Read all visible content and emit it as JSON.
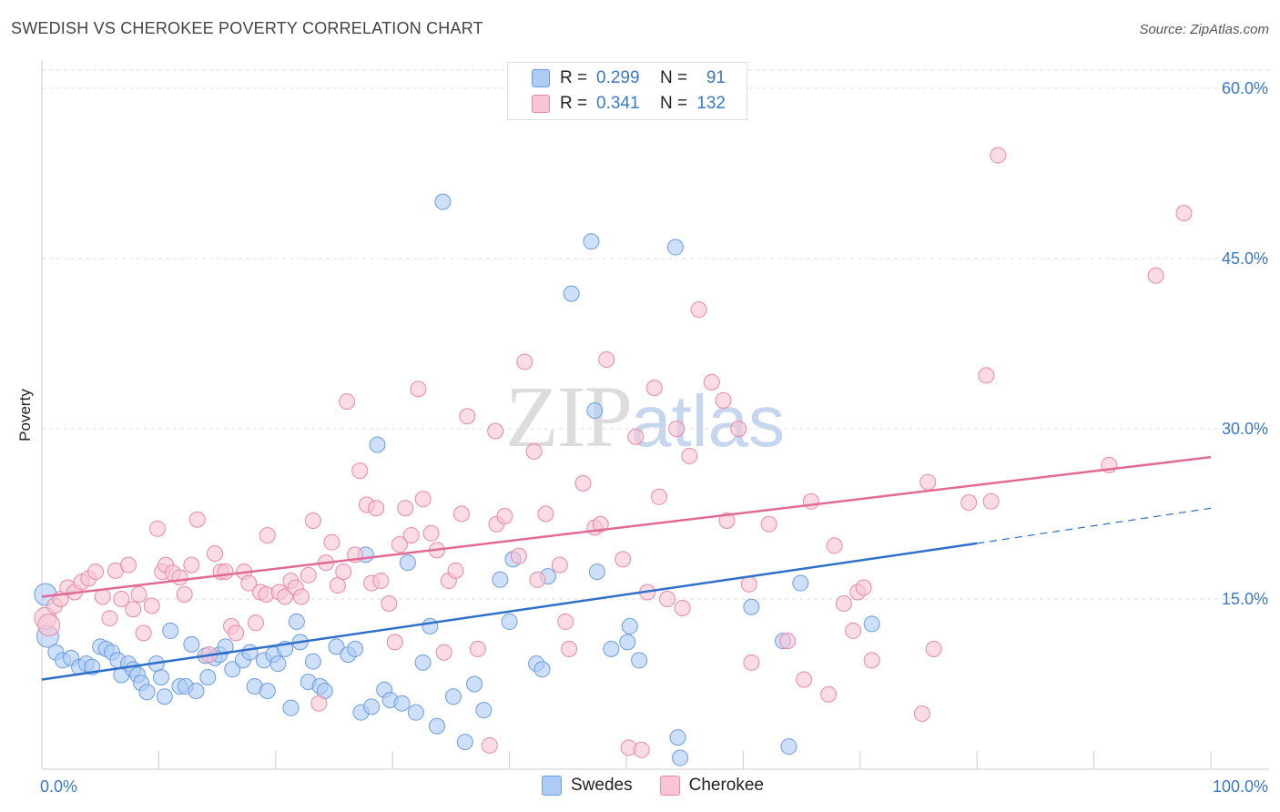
{
  "title": "SWEDISH VS CHEROKEE POVERTY CORRELATION CHART",
  "source": "Source: ZipAtlas.com",
  "watermark": {
    "zip": "ZIP",
    "atlas": "atlas"
  },
  "legend": {
    "rows": [
      {
        "r_label": "R =",
        "r_value": "0.299",
        "n_label": "N =",
        "n_value": "91",
        "color": "#aecbf5",
        "stroke": "#6a9de0"
      },
      {
        "r_label": "R =",
        "r_value": "0.341",
        "n_label": "N =",
        "n_value": "132",
        "color": "#f9c4d4",
        "stroke": "#e889a8"
      }
    ]
  },
  "bottom_legend": [
    {
      "label": "Swedes",
      "color": "#aecbf5",
      "stroke": "#6a9de0"
    },
    {
      "label": "Cherokee",
      "color": "#f9c4d4",
      "stroke": "#e889a8"
    }
  ],
  "chart_data": {
    "type": "scatter",
    "title": "SWEDISH VS CHEROKEE POVERTY CORRELATION CHART",
    "xlabel": "",
    "ylabel": "Poverty",
    "xlim": [
      0,
      100
    ],
    "ylim": [
      0,
      60
    ],
    "x_tick_labels": [
      "0.0%",
      "100.0%"
    ],
    "y_ticks": [
      15,
      30,
      45,
      60
    ],
    "y_tick_labels": [
      "15.0%",
      "30.0%",
      "45.0%",
      "60.0%"
    ],
    "grid": true,
    "series": [
      {
        "name": "Swedes",
        "color": "#6a9de0",
        "fill": "#aecbf5",
        "trend": {
          "x0": 0,
          "y0": 7.9,
          "x1": 80,
          "y1": 19.9,
          "dash_to_x": 100,
          "dash_to_y": 23.0,
          "line_color": "#2f6fc9"
        },
        "points": [
          [
            0.3,
            15.4
          ],
          [
            0.5,
            11.7
          ],
          [
            1.2,
            10.3
          ],
          [
            1.8,
            9.6
          ],
          [
            2.5,
            9.8
          ],
          [
            3.2,
            9.0
          ],
          [
            3.8,
            9.3
          ],
          [
            4.3,
            9.0
          ],
          [
            5,
            10.8
          ],
          [
            5.5,
            10.6
          ],
          [
            6,
            10.3
          ],
          [
            6.5,
            9.6
          ],
          [
            6.8,
            8.3
          ],
          [
            7.4,
            9.3
          ],
          [
            7.8,
            8.8
          ],
          [
            8.2,
            8.3
          ],
          [
            8.5,
            7.6
          ],
          [
            9,
            6.8
          ],
          [
            9.8,
            9.3
          ],
          [
            10.2,
            8.1
          ],
          [
            10.5,
            6.4
          ],
          [
            11,
            12.2
          ],
          [
            11.8,
            7.3
          ],
          [
            12.3,
            7.3
          ],
          [
            12.8,
            11.0
          ],
          [
            13.2,
            6.9
          ],
          [
            14,
            10.0
          ],
          [
            14.2,
            8.1
          ],
          [
            14.8,
            9.8
          ],
          [
            15.2,
            10.1
          ],
          [
            15.7,
            10.8
          ],
          [
            16.3,
            8.8
          ],
          [
            17.2,
            9.6
          ],
          [
            17.8,
            10.3
          ],
          [
            18.2,
            7.3
          ],
          [
            19,
            9.6
          ],
          [
            19.3,
            6.9
          ],
          [
            19.8,
            10.1
          ],
          [
            20.2,
            9.3
          ],
          [
            20.8,
            10.6
          ],
          [
            21.3,
            5.4
          ],
          [
            21.8,
            13.0
          ],
          [
            22.1,
            11.2
          ],
          [
            22.8,
            7.7
          ],
          [
            23.2,
            9.5
          ],
          [
            23.8,
            7.3
          ],
          [
            24.2,
            6.9
          ],
          [
            25.2,
            10.8
          ],
          [
            26.2,
            10.1
          ],
          [
            26.8,
            10.6
          ],
          [
            27.3,
            5.0
          ],
          [
            27.7,
            18.9
          ],
          [
            28.2,
            5.5
          ],
          [
            28.7,
            28.6
          ],
          [
            29.3,
            7.0
          ],
          [
            29.8,
            6.1
          ],
          [
            30.8,
            5.8
          ],
          [
            31.3,
            18.2
          ],
          [
            32,
            5.0
          ],
          [
            32.6,
            9.4
          ],
          [
            33.2,
            12.6
          ],
          [
            33.8,
            3.8
          ],
          [
            34.3,
            50.0
          ],
          [
            35.2,
            6.4
          ],
          [
            36.2,
            2.4
          ],
          [
            37,
            7.5
          ],
          [
            37.8,
            5.2
          ],
          [
            39.2,
            16.7
          ],
          [
            40,
            13.0
          ],
          [
            40.3,
            18.5
          ],
          [
            42.3,
            9.3
          ],
          [
            42.8,
            8.8
          ],
          [
            43.3,
            17.0
          ],
          [
            45.3,
            41.9
          ],
          [
            47,
            46.5
          ],
          [
            47.3,
            31.6
          ],
          [
            47.5,
            17.4
          ],
          [
            48.7,
            10.6
          ],
          [
            50.1,
            11.2
          ],
          [
            50.3,
            12.6
          ],
          [
            51.1,
            9.6
          ],
          [
            54.2,
            46.0
          ],
          [
            54.4,
            2.8
          ],
          [
            54.6,
            1.0
          ],
          [
            60.7,
            14.3
          ],
          [
            63.4,
            11.3
          ],
          [
            63.9,
            2.0
          ],
          [
            64.9,
            16.4
          ],
          [
            71,
            12.8
          ]
        ]
      },
      {
        "name": "Cherokee",
        "color": "#e889a8",
        "fill": "#f9c4d4",
        "trend": {
          "x0": 0,
          "y0": 15.2,
          "x1": 100,
          "y1": 27.5,
          "line_color": "#e06a95"
        },
        "points": [
          [
            0.3,
            13.3
          ],
          [
            0.6,
            12.7
          ],
          [
            1.1,
            14.4
          ],
          [
            1.6,
            15.0
          ],
          [
            2.2,
            16.0
          ],
          [
            2.8,
            15.6
          ],
          [
            3.4,
            16.5
          ],
          [
            4,
            16.8
          ],
          [
            4.6,
            17.4
          ],
          [
            5.2,
            15.2
          ],
          [
            5.8,
            13.3
          ],
          [
            6.3,
            17.5
          ],
          [
            6.8,
            15.0
          ],
          [
            7.4,
            18.0
          ],
          [
            7.8,
            14.1
          ],
          [
            8.3,
            15.4
          ],
          [
            8.7,
            12.0
          ],
          [
            9.4,
            14.4
          ],
          [
            9.9,
            21.2
          ],
          [
            10.3,
            17.4
          ],
          [
            10.6,
            18.0
          ],
          [
            11.2,
            17.3
          ],
          [
            11.8,
            16.9
          ],
          [
            12.2,
            15.4
          ],
          [
            12.8,
            18.0
          ],
          [
            13.3,
            22.0
          ],
          [
            14.3,
            10.1
          ],
          [
            14.8,
            19.0
          ],
          [
            15.3,
            17.4
          ],
          [
            15.7,
            17.4
          ],
          [
            16.2,
            12.6
          ],
          [
            16.6,
            12.0
          ],
          [
            17.3,
            17.4
          ],
          [
            17.7,
            16.4
          ],
          [
            18.3,
            12.9
          ],
          [
            18.7,
            15.6
          ],
          [
            19.2,
            15.4
          ],
          [
            19.3,
            20.6
          ],
          [
            20.3,
            15.6
          ],
          [
            20.8,
            15.2
          ],
          [
            21.3,
            16.6
          ],
          [
            21.7,
            16.0
          ],
          [
            22.2,
            15.2
          ],
          [
            22.8,
            17.1
          ],
          [
            23.2,
            21.9
          ],
          [
            23.7,
            5.8
          ],
          [
            24.3,
            18.2
          ],
          [
            24.8,
            20.0
          ],
          [
            25.3,
            16.2
          ],
          [
            25.8,
            17.4
          ],
          [
            26.1,
            32.4
          ],
          [
            26.8,
            18.9
          ],
          [
            27.2,
            26.3
          ],
          [
            27.8,
            23.3
          ],
          [
            28.2,
            16.4
          ],
          [
            28.6,
            23.0
          ],
          [
            29,
            16.6
          ],
          [
            29.7,
            14.6
          ],
          [
            30.2,
            11.2
          ],
          [
            30.6,
            19.8
          ],
          [
            31.1,
            23.0
          ],
          [
            31.6,
            20.6
          ],
          [
            32.2,
            33.5
          ],
          [
            32.6,
            23.8
          ],
          [
            33.3,
            20.8
          ],
          [
            33.8,
            19.3
          ],
          [
            34.4,
            10.3
          ],
          [
            34.8,
            16.6
          ],
          [
            35.4,
            17.5
          ],
          [
            35.9,
            22.5
          ],
          [
            36.4,
            31.1
          ],
          [
            37.3,
            10.6
          ],
          [
            38.3,
            2.1
          ],
          [
            38.8,
            29.8
          ],
          [
            38.9,
            21.6
          ],
          [
            39.6,
            22.3
          ],
          [
            40.8,
            18.8
          ],
          [
            41.3,
            35.9
          ],
          [
            42.1,
            28.0
          ],
          [
            42.4,
            16.7
          ],
          [
            43.1,
            22.5
          ],
          [
            44.3,
            18.0
          ],
          [
            44.8,
            13.0
          ],
          [
            45.1,
            10.6
          ],
          [
            46.3,
            25.2
          ],
          [
            47.3,
            21.3
          ],
          [
            47.8,
            21.6
          ],
          [
            48.3,
            36.1
          ],
          [
            49.7,
            18.5
          ],
          [
            50.2,
            1.9
          ],
          [
            50.8,
            29.3
          ],
          [
            51.3,
            1.7
          ],
          [
            51.8,
            15.6
          ],
          [
            52.4,
            33.6
          ],
          [
            52.8,
            24.0
          ],
          [
            53.5,
            15.0
          ],
          [
            54.3,
            30.0
          ],
          [
            54.8,
            14.2
          ],
          [
            55.4,
            27.6
          ],
          [
            56.2,
            40.5
          ],
          [
            57.3,
            34.1
          ],
          [
            58.3,
            32.5
          ],
          [
            58.6,
            21.9
          ],
          [
            59.6,
            30.0
          ],
          [
            60.5,
            16.3
          ],
          [
            60.7,
            9.4
          ],
          [
            62.2,
            21.6
          ],
          [
            63.8,
            11.3
          ],
          [
            65.2,
            7.9
          ],
          [
            65.8,
            23.6
          ],
          [
            67.3,
            6.6
          ],
          [
            67.8,
            19.7
          ],
          [
            68.6,
            14.6
          ],
          [
            69.4,
            12.2
          ],
          [
            69.8,
            15.6
          ],
          [
            70.3,
            16.0
          ],
          [
            71,
            9.6
          ],
          [
            75.3,
            4.9
          ],
          [
            75.8,
            25.3
          ],
          [
            76.3,
            10.6
          ],
          [
            79.3,
            23.5
          ],
          [
            80.8,
            34.7
          ],
          [
            81.2,
            23.6
          ],
          [
            81.8,
            54.1
          ],
          [
            91.3,
            26.8
          ],
          [
            95.3,
            43.5
          ],
          [
            97.7,
            49.0
          ]
        ]
      }
    ]
  }
}
